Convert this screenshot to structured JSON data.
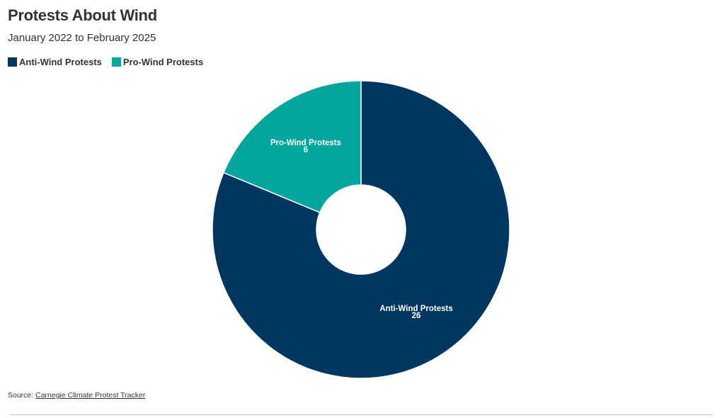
{
  "chart_data": {
    "type": "pie",
    "title": "Protests About Wind",
    "subtitle": "January 2022 to February 2025",
    "legend_position": "top-left",
    "donut": true,
    "series": [
      {
        "name": "Anti-Wind Protests",
        "value": 26,
        "color": "#003761"
      },
      {
        "name": "Pro-Wind Protests",
        "value": 6,
        "color": "#00a69c"
      }
    ]
  },
  "source": {
    "prefix": "Source: ",
    "link_text": "Carnegie Climate Protest Tracker"
  }
}
